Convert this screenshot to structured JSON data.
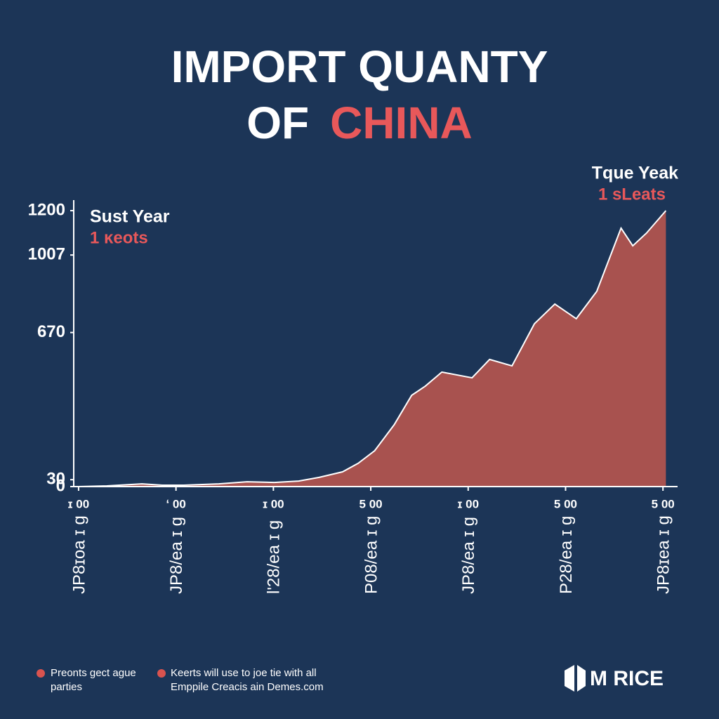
{
  "chart_data": {
    "type": "area",
    "title_parts": [
      "IMPORT  QUANTY",
      "OF",
      "CHINA"
    ],
    "title_colors": [
      "#ffffff",
      "#ffffff",
      "#e8585a"
    ],
    "annotations": [
      {
        "title": "Sust Year",
        "text": "1 ĸeots"
      },
      {
        "title": "Tque Yeak",
        "text": "1 sLeats"
      }
    ],
    "x": [
      0,
      0.29,
      0.65,
      0.86,
      1.08,
      1.44,
      1.73,
      2.01,
      2.26,
      2.47,
      2.71,
      2.87,
      3.04,
      3.24,
      3.42,
      3.56,
      3.73,
      4.04,
      4.22,
      4.45,
      4.68,
      4.89,
      5.11,
      5.32,
      5.57,
      5.69,
      5.83,
      6.03
    ],
    "values": [
      0,
      3,
      12,
      6,
      6,
      12,
      21,
      18,
      24,
      40,
      64,
      101,
      156,
      269,
      397,
      437,
      498,
      473,
      553,
      525,
      708,
      794,
      730,
      849,
      1124,
      1047,
      1102,
      1200
    ],
    "color": "#a8524f",
    "line_color": "#ffffff",
    "xlim": [
      -0.05,
      6.15
    ],
    "xticks": [
      {
        "value": 0,
        "label": "JP8ɪoa ɪ g"
      },
      {
        "value": 1,
        "label": "JP8/ea ɪ g"
      },
      {
        "value": 2,
        "label": "Ɩ'28/ea ɪ g"
      },
      {
        "value": 3,
        "label": "P08/ea ɪ g"
      },
      {
        "value": 4,
        "label": "JP8/ea ɪ g"
      },
      {
        "value": 5,
        "label": "P28/ea ɪ g"
      },
      {
        "value": 6,
        "label": "JP8ɪea ɪ g"
      }
    ],
    "xtick_top_labels": [
      "ɪ 00",
      "ʻ 00",
      "ɪ 00",
      "5 00",
      "ɪ 00",
      "5 00",
      "5 00"
    ],
    "ylim": [
      0,
      1200
    ],
    "yticks": [
      0,
      30,
      670,
      1007,
      1200
    ],
    "footer": [
      "Preonts gect ague",
      "parties",
      "Keerts will use to joe tie with all",
      "Emppile Creacis ain Demes.com"
    ],
    "logo": "M RICE"
  }
}
